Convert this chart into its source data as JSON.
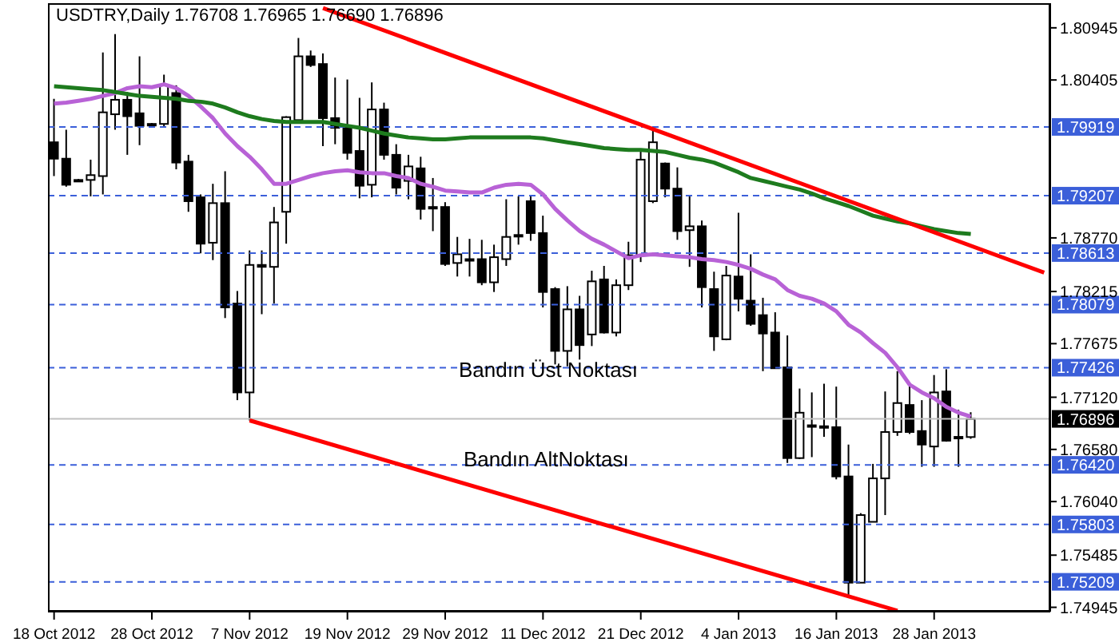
{
  "chart_data": {
    "type": "candlestick",
    "title": "USDTRY,Daily 1.76708 1.76965 1.76690 1.76896",
    "categories": [
      "18 Oct 2012",
      null,
      null,
      null,
      null,
      null,
      null,
      null,
      "28 Oct 2012",
      null,
      null,
      null,
      null,
      null,
      null,
      null,
      "7 Nov 2012",
      null,
      null,
      null,
      null,
      null,
      null,
      null,
      "19 Nov 2012",
      null,
      null,
      null,
      null,
      null,
      null,
      null,
      "29 Nov 2012",
      null,
      null,
      null,
      null,
      null,
      null,
      null,
      "11 Dec 2012",
      null,
      null,
      null,
      null,
      null,
      null,
      null,
      "21 Dec 2012",
      null,
      null,
      null,
      null,
      null,
      null,
      null,
      "4 Jan 2013",
      null,
      null,
      null,
      null,
      null,
      null,
      null,
      "16 Jan 2013",
      null,
      null,
      null,
      null,
      null,
      null,
      null,
      "28 Jan 2013",
      null,
      null,
      null,
      null,
      null,
      null,
      null,
      null,
      null
    ],
    "ohlc": [
      [
        1.7976,
        1.8021,
        1.7941,
        1.7959
      ],
      [
        1.7959,
        1.7989,
        1.793,
        1.7932
      ],
      [
        1.7937,
        1.7938,
        1.7936,
        1.7937
      ],
      [
        1.7937,
        1.7958,
        1.792,
        1.7942
      ],
      [
        1.7941,
        1.8069,
        1.7922,
        1.8007
      ],
      [
        1.8005,
        1.8088,
        1.7989,
        1.802
      ],
      [
        1.802,
        1.8028,
        1.7963,
        1.8003
      ],
      [
        1.8006,
        1.8065,
        1.7973,
        1.7993
      ],
      [
        1.7995,
        1.7996,
        1.7994,
        1.7995
      ],
      [
        1.7995,
        1.8046,
        1.7991,
        1.8035
      ],
      [
        1.8027,
        1.8035,
        1.7948,
        1.7955
      ],
      [
        1.7956,
        1.7963,
        1.7904,
        1.7915
      ],
      [
        1.7919,
        1.7922,
        1.7861,
        1.7871
      ],
      [
        1.7872,
        1.7933,
        1.7854,
        1.7913
      ],
      [
        1.7913,
        1.7946,
        1.7794,
        1.7805
      ],
      [
        1.7809,
        1.7822,
        1.7709,
        1.7717
      ],
      [
        1.7717,
        1.7864,
        1.7688,
        1.7849
      ],
      [
        1.7849,
        1.7864,
        1.7798,
        1.7847
      ],
      [
        1.7847,
        1.7909,
        1.7809,
        1.7893
      ],
      [
        1.7904,
        1.8003,
        1.7871,
        1.8002
      ],
      [
        1.7999,
        1.8084,
        1.7998,
        1.8065
      ],
      [
        1.8065,
        1.8071,
        1.8054,
        1.8056
      ],
      [
        1.8057,
        1.8068,
        1.7972,
        1.8001
      ],
      [
        1.8001,
        1.8043,
        1.7974,
        1.7991
      ],
      [
        1.7991,
        1.8041,
        1.7958,
        1.7965
      ],
      [
        1.7967,
        1.8022,
        1.7918,
        1.7931
      ],
      [
        1.7932,
        1.8038,
        1.7919,
        1.801
      ],
      [
        1.801,
        1.8017,
        1.7958,
        1.7963
      ],
      [
        1.7963,
        1.7974,
        1.7922,
        1.7929
      ],
      [
        1.7936,
        1.7963,
        1.7917,
        1.7951
      ],
      [
        1.7949,
        1.7961,
        1.7896,
        1.7907
      ],
      [
        1.7909,
        1.7939,
        1.7884,
        1.7909
      ],
      [
        1.7909,
        1.7914,
        1.7848,
        1.785
      ],
      [
        1.7851,
        1.7878,
        1.7837,
        1.786
      ],
      [
        1.7855,
        1.7876,
        1.7837,
        1.7855
      ],
      [
        1.7855,
        1.7875,
        1.7828,
        1.7831
      ],
      [
        1.7831,
        1.787,
        1.7821,
        1.7857
      ],
      [
        1.7855,
        1.7917,
        1.7848,
        1.7878
      ],
      [
        1.788,
        1.792,
        1.787,
        1.788
      ],
      [
        1.7915,
        1.792,
        1.7874,
        1.7882
      ],
      [
        1.7882,
        1.79,
        1.7805,
        1.7821
      ],
      [
        1.7824,
        1.7826,
        1.7746,
        1.776
      ],
      [
        1.776,
        1.7827,
        1.7744,
        1.7803
      ],
      [
        1.7803,
        1.7817,
        1.7751,
        1.7766
      ],
      [
        1.7777,
        1.7843,
        1.7765,
        1.7832
      ],
      [
        1.7834,
        1.7848,
        1.7778,
        1.7779
      ],
      [
        1.7779,
        1.7834,
        1.7775,
        1.7828
      ],
      [
        1.7828,
        1.7873,
        1.7823,
        1.7859
      ],
      [
        1.7859,
        1.7969,
        1.7852,
        1.7958
      ],
      [
        1.7915,
        1.7991,
        1.7913,
        1.7976
      ],
      [
        1.7954,
        1.7955,
        1.7919,
        1.7928
      ],
      [
        1.7928,
        1.795,
        1.7875,
        1.7884
      ],
      [
        1.7885,
        1.792,
        1.7847,
        1.7889
      ],
      [
        1.7889,
        1.7895,
        1.7805,
        1.7826
      ],
      [
        1.7824,
        1.7842,
        1.776,
        1.7775
      ],
      [
        1.7772,
        1.7848,
        1.7771,
        1.7838
      ],
      [
        1.7837,
        1.7903,
        1.7801,
        1.7814
      ],
      [
        1.7812,
        1.786,
        1.7786,
        1.7788
      ],
      [
        1.7797,
        1.7815,
        1.7739,
        1.7778
      ],
      [
        1.7779,
        1.78,
        1.7742,
        1.7742
      ],
      [
        1.7743,
        1.7776,
        1.7644,
        1.7649
      ],
      [
        1.7649,
        1.7721,
        1.7648,
        1.7696
      ],
      [
        1.7683,
        1.7717,
        1.765,
        1.7683
      ],
      [
        1.7682,
        1.7726,
        1.7671,
        1.7682
      ],
      [
        1.7681,
        1.7723,
        1.7627,
        1.763
      ],
      [
        1.763,
        1.7663,
        1.7505,
        1.752
      ],
      [
        1.752,
        1.7592,
        1.752,
        1.759
      ],
      [
        1.7583,
        1.7643,
        1.7583,
        1.7628
      ],
      [
        1.7628,
        1.7718,
        1.759,
        1.7676
      ],
      [
        1.7676,
        1.7739,
        1.7672,
        1.7706
      ],
      [
        1.7704,
        1.7725,
        1.7674,
        1.7676
      ],
      [
        1.7677,
        1.7709,
        1.764,
        1.7663
      ],
      [
        1.7661,
        1.7735,
        1.764,
        1.7717
      ],
      [
        1.7718,
        1.7741,
        1.7666,
        1.7667
      ],
      [
        1.7671,
        1.7699,
        1.764,
        1.7671
      ],
      [
        1.76708,
        1.76965,
        1.7669,
        1.76896
      ],
      null,
      null,
      null,
      null,
      null,
      null
    ],
    "series": [
      {
        "type": "line",
        "color": "#b862d6",
        "values": [
          1.8016,
          1.8017,
          1.8019,
          1.8021,
          1.8024,
          1.8027,
          1.8032,
          1.8034,
          1.8033,
          1.8036,
          1.8032,
          1.8024,
          1.8013,
          1.8001,
          1.7985,
          1.7972,
          1.7961,
          1.7948,
          1.7933,
          1.7933,
          1.7937,
          1.7941,
          1.7944,
          1.7946,
          1.7947,
          1.7945,
          1.7944,
          1.7944,
          1.7941,
          1.7939,
          1.7933,
          1.793,
          1.7926,
          1.7925,
          1.7924,
          1.7924,
          1.7929,
          1.7932,
          1.7933,
          1.7932,
          1.7922,
          1.7907,
          1.7895,
          1.7884,
          1.7876,
          1.787,
          1.7863,
          1.7856,
          1.7859,
          1.786,
          1.7859,
          1.7858,
          1.7857,
          1.7855,
          1.7854,
          1.7852,
          1.7849,
          1.7845,
          1.7839,
          1.7834,
          1.7823,
          1.7817,
          1.7814,
          1.7809,
          1.7801,
          1.7787,
          1.7779,
          1.7768,
          1.7758,
          1.7743,
          1.7725,
          1.7717,
          1.7711,
          1.7702,
          1.7696,
          1.7692,
          null,
          null,
          null,
          null,
          null,
          null
        ]
      },
      {
        "type": "line",
        "color": "#1e7b1e",
        "values": [
          1.8034,
          1.8033,
          1.8032,
          1.8031,
          1.803,
          1.8028,
          1.8026,
          1.8024,
          1.8023,
          1.8022,
          1.8021,
          1.8019,
          1.8018,
          1.8016,
          1.8012,
          1.8007,
          1.8003,
          1.8,
          1.7998,
          1.7997,
          1.7997,
          1.7997,
          1.7997,
          1.7995,
          1.7993,
          1.7991,
          1.7988,
          1.7985,
          1.7983,
          1.7981,
          1.798,
          1.7979,
          1.7979,
          1.798,
          1.7981,
          1.7981,
          1.7981,
          1.7981,
          1.7981,
          1.7981,
          1.798,
          1.7978,
          1.7976,
          1.7974,
          1.7972,
          1.797,
          1.7969,
          1.7968,
          1.7968,
          1.7967,
          1.7966,
          1.7963,
          1.796,
          1.7958,
          1.7955,
          1.795,
          1.7945,
          1.7939,
          1.7936,
          1.7933,
          1.793,
          1.7927,
          1.7923,
          1.7918,
          1.7914,
          1.791,
          1.7905,
          1.79,
          1.7897,
          1.7894,
          1.7892,
          1.7889,
          1.7886,
          1.7884,
          1.7882,
          1.7881,
          null,
          null,
          null,
          null,
          null,
          null
        ]
      },
      {
        "type": "line",
        "color": "#ff0000",
        "values": [
          null,
          null,
          null,
          null,
          null,
          null,
          null,
          null,
          null,
          null,
          null,
          null,
          null,
          null,
          null,
          null,
          null,
          null,
          null,
          null,
          null,
          null,
          1.8115,
          null,
          null,
          null,
          null,
          null,
          null,
          null,
          null,
          null,
          null,
          null,
          null,
          null,
          null,
          null,
          null,
          null,
          null,
          null,
          null,
          null,
          null,
          null,
          null,
          null,
          null,
          null,
          null,
          null,
          null,
          null,
          null,
          null,
          null,
          null,
          null,
          null,
          null,
          null,
          null,
          null,
          null,
          null,
          null,
          null,
          null,
          null,
          null,
          null,
          null,
          null,
          null,
          null,
          null,
          null,
          null,
          null,
          null,
          1.7841
        ]
      },
      {
        "type": "line",
        "color": "#ff0000",
        "values": [
          null,
          null,
          null,
          null,
          null,
          null,
          null,
          null,
          null,
          null,
          null,
          null,
          null,
          null,
          null,
          null,
          1.7688,
          null,
          null,
          null,
          null,
          null,
          null,
          null,
          null,
          null,
          null,
          null,
          null,
          null,
          null,
          null,
          null,
          null,
          null,
          null,
          null,
          null,
          null,
          null,
          null,
          null,
          null,
          null,
          null,
          null,
          null,
          null,
          null,
          null,
          null,
          null,
          null,
          null,
          null,
          null,
          null,
          null,
          null,
          null,
          null,
          null,
          null,
          null,
          null,
          null,
          null,
          null,
          null,
          1.7491,
          null,
          null,
          null,
          null,
          null,
          null,
          null,
          null,
          null,
          null,
          null,
          null
        ]
      }
    ],
    "ylim": [
      1.749,
      1.812
    ],
    "yticks": [
      1.80945,
      1.80405,
      {
        "value": 1.7877,
        "label": "1.78770"
      },
      1.78215,
      1.77675,
      {
        "value": 1.7712,
        "label": "1.77120"
      },
      {
        "value": 1.7658,
        "label": "1.76580"
      },
      {
        "value": 1.7604,
        "label": "1.76040"
      },
      1.75485,
      1.74945
    ],
    "ref_lines": [
      {
        "axis": "y",
        "value": 1.79919,
        "label": "1.79919",
        "color": "#3b5fd9",
        "line_style": "dashed"
      },
      {
        "axis": "y",
        "value": 1.79207,
        "label": "1.79207",
        "color": "#3b5fd9",
        "line_style": "dashed"
      },
      {
        "axis": "y",
        "value": 1.78613,
        "label": "1.78613",
        "color": "#3b5fd9",
        "line_style": "dashed"
      },
      {
        "axis": "y",
        "value": 1.78079,
        "label": "1.78079",
        "color": "#3b5fd9",
        "line_style": "dashed"
      },
      {
        "axis": "y",
        "value": 1.77426,
        "label": "1.77426",
        "color": "#3b5fd9",
        "line_style": "dashed"
      },
      {
        "axis": "y",
        "value": 1.76896,
        "label": "1.76896",
        "color": "#c0c0c0",
        "line_style": "solid"
      },
      {
        "axis": "y",
        "value": 1.7642,
        "label": "1.76420",
        "color": "#3b5fd9",
        "line_style": "dashed"
      },
      {
        "axis": "y",
        "value": 1.75803,
        "label": "1.75803",
        "color": "#3b5fd9",
        "line_style": "dashed"
      },
      {
        "axis": "y",
        "value": 1.75209,
        "label": "1.75209",
        "color": "#3b5fd9",
        "line_style": "dashed"
      }
    ],
    "annotations": [
      "Bandın Üst Noktası",
      "Bandın AltNoktası"
    ],
    "marker": "none"
  }
}
